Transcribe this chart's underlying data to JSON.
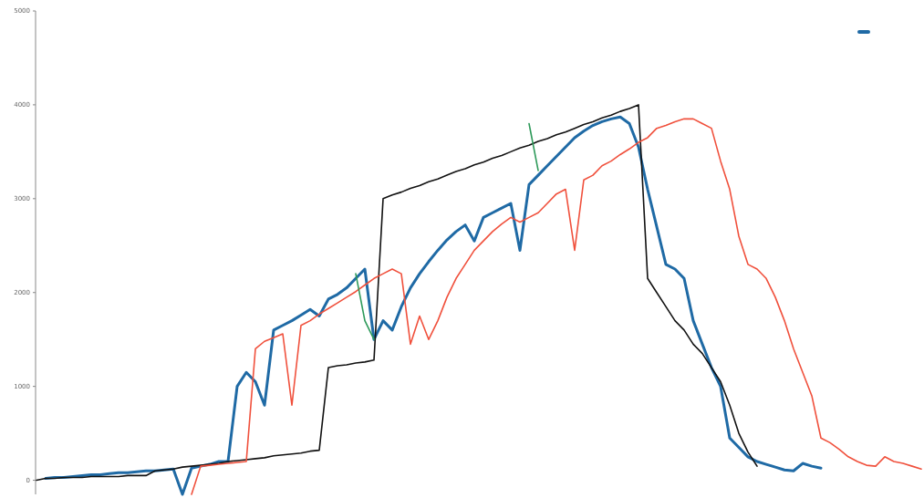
{
  "chart_data": {
    "type": "line",
    "ylim": [
      -150,
      5000
    ],
    "yticks": [
      0,
      1000,
      2000,
      3000,
      4000,
      5000
    ],
    "grid": false,
    "marker": "none",
    "line_style": "solid",
    "categories": [
      null,
      null,
      null,
      null,
      null,
      null,
      null,
      null,
      null,
      null,
      null,
      null,
      null,
      null,
      null,
      null,
      null,
      null,
      null,
      null,
      null,
      null,
      null,
      null,
      null,
      null,
      null,
      null,
      null,
      null,
      null,
      null,
      null,
      null,
      null,
      null,
      null,
      null,
      null,
      null,
      null,
      null,
      null,
      null,
      null,
      null,
      null,
      null,
      null,
      null,
      null,
      null,
      null,
      null,
      null,
      null,
      null,
      null,
      null,
      null,
      null,
      null,
      null,
      null,
      null,
      null,
      null,
      null,
      null,
      null,
      null,
      null,
      null,
      null,
      null,
      null,
      null,
      null,
      null,
      null,
      null,
      null,
      null,
      null,
      null,
      null,
      null,
      null,
      null,
      null,
      null,
      null,
      null,
      null,
      null,
      null,
      null,
      null
    ],
    "series": [
      {
        "color": "#1f6aa5",
        "values": [
          null,
          20,
          30,
          30,
          40,
          50,
          60,
          60,
          70,
          80,
          80,
          90,
          100,
          100,
          110,
          120,
          -150,
          130,
          150,
          170,
          200,
          200,
          1000,
          1150,
          1050,
          800,
          1600,
          1650,
          1700,
          1760,
          1820,
          1750,
          1930,
          1980,
          2050,
          2150,
          2250,
          1500,
          1700,
          1600,
          1850,
          2050,
          2200,
          2330,
          2450,
          2560,
          2650,
          2720,
          2550,
          2800,
          2850,
          2900,
          2950,
          2450,
          3150,
          3250,
          3350,
          3450,
          3550,
          3650,
          3720,
          3780,
          3820,
          3850,
          3870,
          3800,
          3550,
          3100,
          2700,
          2300,
          2250,
          2150,
          1700,
          1450,
          1200,
          1000,
          450,
          350,
          250,
          200,
          170,
          140,
          110,
          100,
          180,
          150,
          130,
          null,
          null,
          null,
          null,
          null,
          null,
          null,
          null,
          null,
          null,
          null
        ]
      },
      {
        "color": "#111111",
        "values": [
          0,
          20,
          20,
          30,
          30,
          30,
          40,
          40,
          40,
          40,
          50,
          50,
          50,
          100,
          110,
          120,
          140,
          150,
          160,
          170,
          180,
          200,
          210,
          220,
          230,
          240,
          260,
          270,
          280,
          290,
          310,
          320,
          1200,
          1220,
          1230,
          1250,
          1260,
          1280,
          3000,
          3040,
          3070,
          3110,
          3140,
          3180,
          3210,
          3250,
          3290,
          3320,
          3360,
          3390,
          3430,
          3460,
          3500,
          3540,
          3570,
          3610,
          3640,
          3680,
          3710,
          3750,
          3790,
          3820,
          3860,
          3890,
          3930,
          3960,
          4000,
          2150,
          2000,
          1850,
          1700,
          1600,
          1450,
          1350,
          1200,
          1050,
          800,
          500,
          300,
          150,
          null,
          null,
          null,
          null,
          null,
          null,
          null,
          null,
          null,
          null,
          null,
          null,
          null,
          null,
          null,
          null,
          null,
          null
        ]
      },
      {
        "color": "#f0503c",
        "values": [
          null,
          null,
          null,
          null,
          null,
          null,
          null,
          null,
          null,
          null,
          null,
          null,
          null,
          null,
          null,
          null,
          null,
          -150,
          150,
          160,
          170,
          180,
          190,
          200,
          1400,
          1480,
          1520,
          1560,
          800,
          1650,
          1700,
          1770,
          1830,
          1890,
          1950,
          2010,
          2080,
          2150,
          2200,
          2250,
          2200,
          1450,
          1750,
          1500,
          1700,
          1950,
          2150,
          2300,
          2450,
          2550,
          2650,
          2730,
          2800,
          2750,
          2800,
          2850,
          2950,
          3050,
          3100,
          2450,
          3200,
          3250,
          3350,
          3400,
          3470,
          3530,
          3600,
          3650,
          3750,
          3780,
          3820,
          3850,
          3850,
          3800,
          3750,
          3400,
          3100,
          2600,
          2300,
          2250,
          2150,
          1950,
          1700,
          1400,
          1150,
          900,
          450,
          400,
          330,
          250,
          200,
          160,
          150,
          250,
          200,
          180,
          150,
          120
        ]
      },
      {
        "color": "#2e9a5a",
        "values": [
          null,
          null,
          null,
          null,
          null,
          null,
          null,
          null,
          null,
          null,
          null,
          null,
          null,
          null,
          null,
          null,
          null,
          null,
          null,
          null,
          null,
          null,
          null,
          null,
          null,
          null,
          null,
          null,
          null,
          null,
          null,
          null,
          null,
          null,
          null,
          2200,
          1700,
          1500,
          null,
          null,
          null,
          null,
          null,
          null,
          null,
          null,
          null,
          null,
          null,
          null,
          null,
          null,
          null,
          null,
          3800,
          3300,
          null,
          null,
          null,
          null,
          null,
          null,
          null,
          null,
          null,
          null,
          null,
          null,
          null,
          null,
          null,
          null,
          null,
          null,
          null,
          null,
          null,
          null,
          null,
          null,
          null,
          null,
          null,
          null,
          null,
          null,
          null,
          null,
          null,
          null,
          null,
          null,
          null,
          null,
          null,
          null,
          null,
          null
        ]
      }
    ]
  }
}
